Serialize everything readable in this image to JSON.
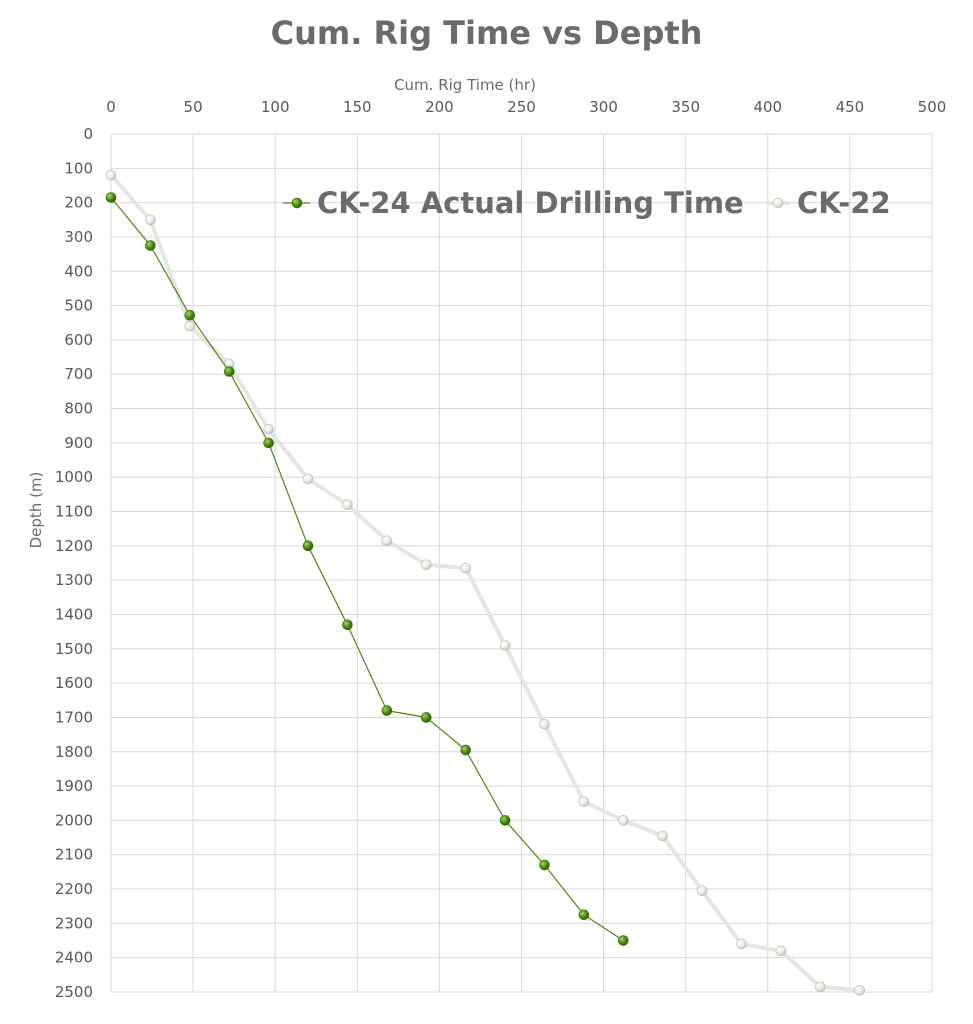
{
  "chart_data": {
    "type": "scatter",
    "title": "Cum. Rig Time vs Depth",
    "xlabel": "Cum. Rig Time (hr)",
    "ylabel": "Depth (m)",
    "xlim": [
      0,
      500
    ],
    "ylim": [
      0,
      2500
    ],
    "y_inverted": true,
    "x_axis_position": "top",
    "x_ticks": [
      0,
      50,
      100,
      150,
      200,
      250,
      300,
      350,
      400,
      450,
      500
    ],
    "y_ticks": [
      0,
      100,
      200,
      300,
      400,
      500,
      600,
      700,
      800,
      900,
      1000,
      1100,
      1200,
      1300,
      1400,
      1500,
      1600,
      1700,
      1800,
      1900,
      2000,
      2100,
      2200,
      2300,
      2400,
      2500
    ],
    "grid": true,
    "legend_position": "top-right",
    "series": [
      {
        "name": "CK-24 Actual Drilling Time",
        "color": "#4f8a10",
        "points": [
          [
            0,
            185
          ],
          [
            24,
            325
          ],
          [
            48,
            528
          ],
          [
            72,
            692
          ],
          [
            96,
            900
          ],
          [
            120,
            1200
          ],
          [
            144,
            1430
          ],
          [
            168,
            1680
          ],
          [
            192,
            1700
          ],
          [
            216,
            1795
          ],
          [
            240,
            2000
          ],
          [
            264,
            2130
          ],
          [
            288,
            2275
          ],
          [
            312,
            2350
          ]
        ]
      },
      {
        "name": "CK-22",
        "color": "#dfe3dc",
        "points": [
          [
            0,
            120
          ],
          [
            24,
            250
          ],
          [
            48,
            560
          ],
          [
            72,
            670
          ],
          [
            96,
            860
          ],
          [
            120,
            1005
          ],
          [
            144,
            1080
          ],
          [
            168,
            1185
          ],
          [
            192,
            1255
          ],
          [
            216,
            1265
          ],
          [
            240,
            1490
          ],
          [
            264,
            1720
          ],
          [
            288,
            1945
          ],
          [
            312,
            2000
          ],
          [
            336,
            2045
          ],
          [
            360,
            2205
          ],
          [
            384,
            2360
          ],
          [
            408,
            2380
          ],
          [
            432,
            2485
          ],
          [
            456,
            2495
          ]
        ]
      }
    ]
  }
}
